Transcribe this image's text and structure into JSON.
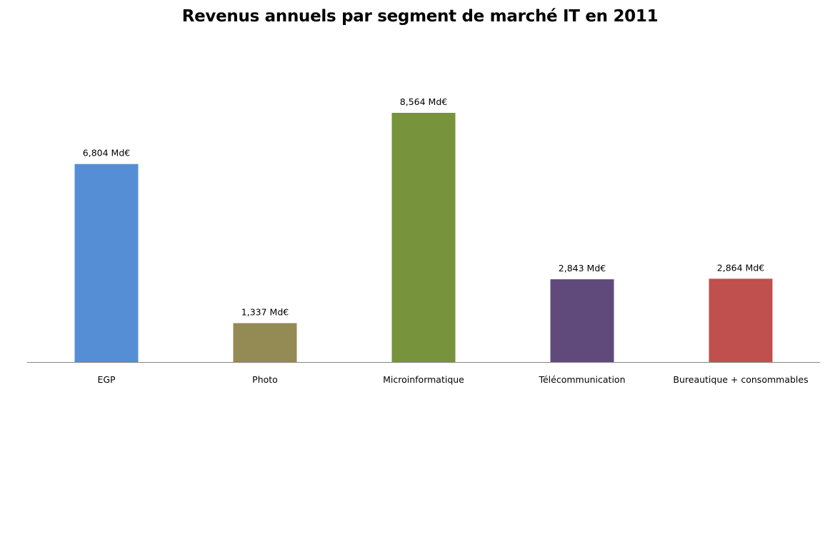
{
  "chart_data": {
    "type": "bar",
    "title": "Revenus annuels par segment de marché IT en 2011",
    "xlabel": "",
    "ylabel": "",
    "categories": [
      "EGP",
      "Photo",
      "Microinformatique",
      "Télécommunication",
      "Bureautique + consommables"
    ],
    "values": [
      6.804,
      1.337,
      8.564,
      2.843,
      2.864
    ],
    "value_labels": [
      "6,804 Md€",
      "1,337 Md€",
      "8,564 Md€",
      "2,843 Md€",
      "2,864 Md€"
    ],
    "colors": [
      "#558ED5",
      "#948A54",
      "#77933C",
      "#604A7B",
      "#C0504D"
    ],
    "ylim": [
      0,
      10
    ],
    "grid": false,
    "legend": "none"
  }
}
